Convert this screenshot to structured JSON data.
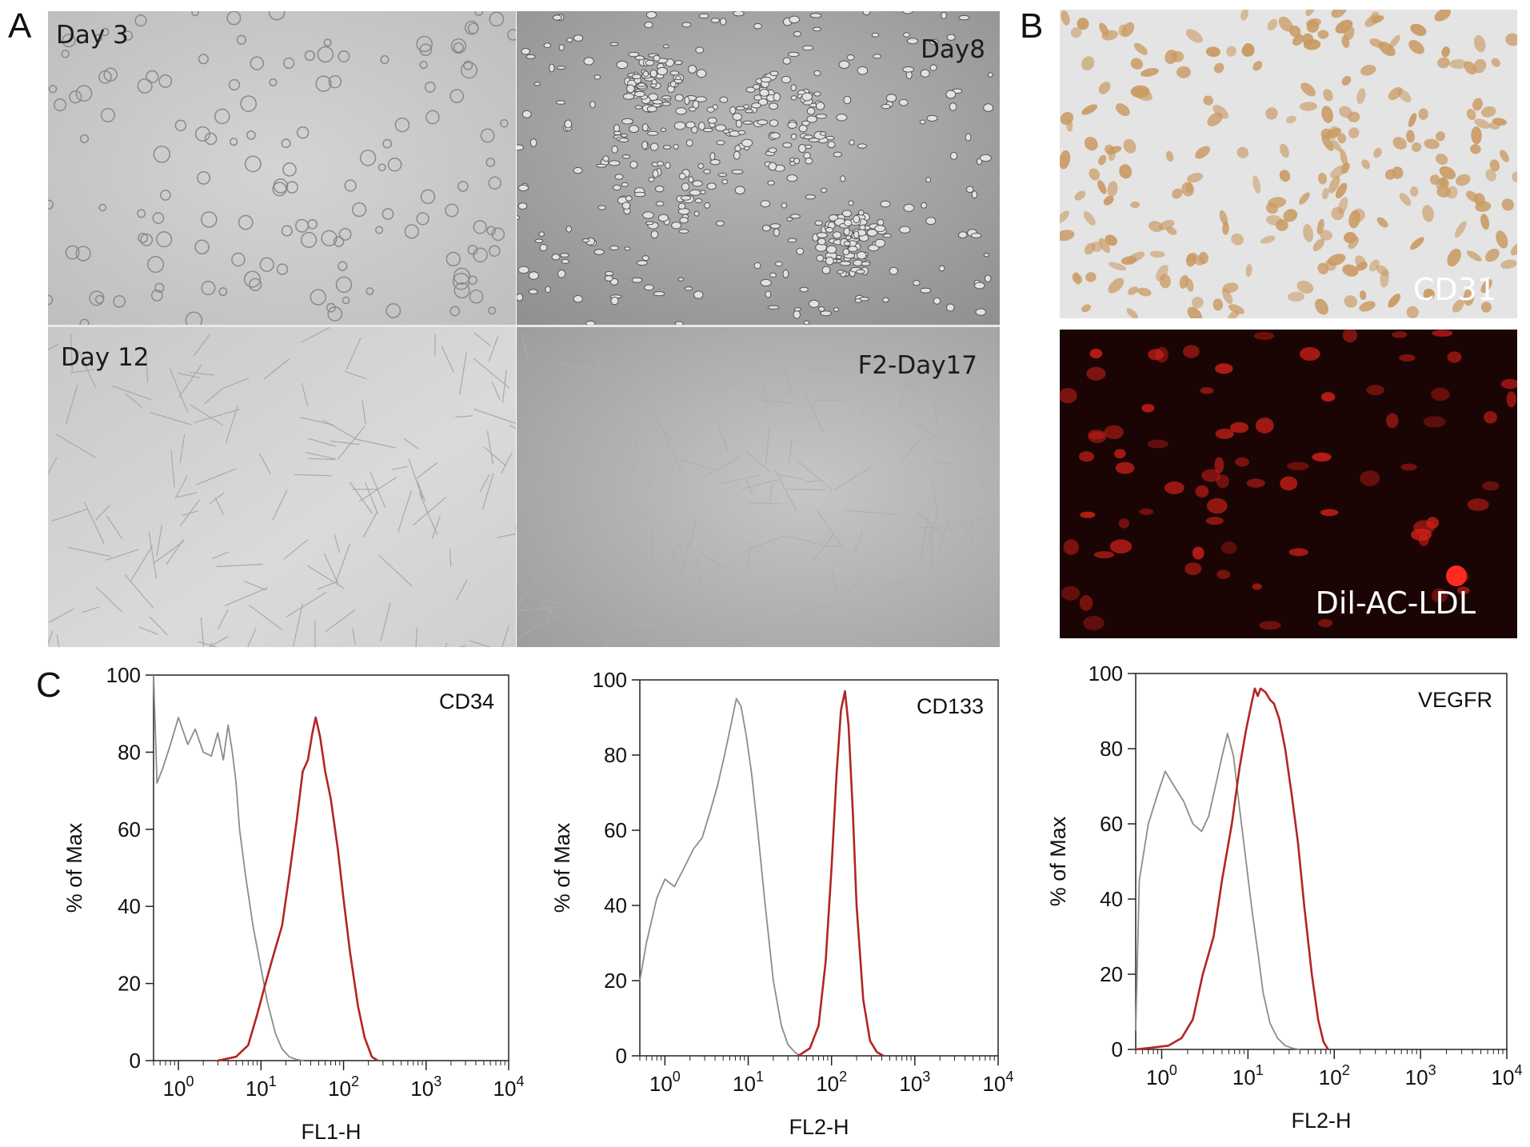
{
  "panel_letters": {
    "a": "A",
    "b": "B",
    "c": "C"
  },
  "panel_a": {
    "tiles": [
      {
        "label": "Day 3",
        "tone": "#c9c9c9"
      },
      {
        "label": "Day8",
        "tone": "#a9a9a9"
      },
      {
        "label": "Day 12",
        "tone": "#d2d2d2"
      },
      {
        "label": "F2-Day17",
        "tone": "#b0b0b0"
      }
    ]
  },
  "panel_b": {
    "top": {
      "label": "CD31",
      "background": "#e4e4e4",
      "cell_color": "#c99a63"
    },
    "bottom": {
      "label": "Dil-AC-LDL",
      "background": "#1a0504",
      "cell_color": "#d0201a"
    }
  },
  "chart_data": [
    {
      "type": "line",
      "title": "CD34",
      "xlabel": "FL1-H",
      "ylabel": "% of Max",
      "x_scale": "log",
      "xlim": [
        0.5,
        10000
      ],
      "ylim": [
        0,
        100
      ],
      "x_ticks": [
        "10^0",
        "10^1",
        "10^2",
        "10^3",
        "10^4"
      ],
      "y_ticks": [
        0,
        20,
        40,
        60,
        80,
        100
      ],
      "series": [
        {
          "color": "#8c8c8c",
          "x": [
            0.5,
            0.55,
            0.65,
            0.8,
            1.0,
            1.3,
            1.6,
            2.0,
            2.5,
            3.0,
            3.5,
            4.0,
            4.5,
            5.0,
            5.5,
            6.5,
            8,
            10,
            12,
            15,
            18,
            22,
            27,
            33
          ],
          "y": [
            100,
            72,
            76,
            82,
            89,
            82,
            86,
            80,
            79,
            85,
            78,
            87,
            80,
            72,
            60,
            48,
            35,
            24,
            15,
            7,
            3,
            1,
            0.3,
            0
          ]
        },
        {
          "color": "#b32424",
          "x": [
            3,
            5,
            7,
            9,
            11,
            14,
            18,
            22,
            27,
            32,
            37,
            42,
            46,
            52,
            60,
            70,
            85,
            100,
            120,
            150,
            180,
            220,
            260
          ],
          "y": [
            0,
            1,
            4,
            12,
            19,
            27,
            35,
            48,
            62,
            75,
            78,
            85,
            89,
            84,
            75,
            68,
            55,
            42,
            28,
            14,
            6,
            1,
            0
          ]
        }
      ]
    },
    {
      "type": "line",
      "title": "CD133",
      "xlabel": "FL2-H",
      "ylabel": "% of Max",
      "x_scale": "log",
      "xlim": [
        0.5,
        10000
      ],
      "ylim": [
        0,
        100
      ],
      "x_ticks": [
        "10^0",
        "10^1",
        "10^2",
        "10^3",
        "10^4"
      ],
      "y_ticks": [
        0,
        20,
        40,
        60,
        80,
        100
      ],
      "series": [
        {
          "color": "#8c8c8c",
          "x": [
            0.5,
            0.6,
            0.8,
            1.0,
            1.3,
            1.7,
            2.2,
            2.8,
            3.5,
            4.3,
            5.2,
            6.2,
            7.2,
            8.2,
            9.5,
            11,
            13,
            16,
            20,
            25,
            30,
            36,
            42
          ],
          "y": [
            20,
            30,
            42,
            47,
            45,
            50,
            55,
            58,
            65,
            72,
            80,
            88,
            95,
            93,
            85,
            75,
            60,
            40,
            20,
            8,
            3,
            1,
            0
          ]
        },
        {
          "color": "#b32424",
          "x": [
            40,
            55,
            70,
            85,
            100,
            115,
            130,
            145,
            160,
            180,
            200,
            240,
            290,
            350,
            420
          ],
          "y": [
            0,
            2,
            8,
            25,
            50,
            75,
            92,
            97,
            88,
            65,
            40,
            15,
            4,
            1,
            0
          ]
        }
      ]
    },
    {
      "type": "line",
      "title": "VEGFR",
      "xlabel": "FL2-H",
      "ylabel": "% of Max",
      "x_scale": "log",
      "xlim": [
        0.5,
        10000
      ],
      "ylim": [
        0,
        100
      ],
      "x_ticks": [
        "10^0",
        "10^1",
        "10^2",
        "10^3",
        "10^4"
      ],
      "y_ticks": [
        0,
        20,
        40,
        60,
        80,
        100
      ],
      "series": [
        {
          "color": "#8c8c8c",
          "x": [
            0.5,
            0.55,
            0.7,
            0.9,
            1.1,
            1.4,
            1.8,
            2.3,
            2.9,
            3.5,
            4.2,
            5.0,
            5.8,
            6.8,
            8,
            9.5,
            11,
            13,
            15,
            18,
            22,
            27,
            33,
            40
          ],
          "y": [
            5,
            45,
            60,
            68,
            74,
            70,
            66,
            60,
            58,
            62,
            70,
            78,
            84,
            78,
            64,
            50,
            38,
            26,
            15,
            7,
            3,
            1,
            0.3,
            0
          ]
        },
        {
          "color": "#b32424",
          "x": [
            0.5,
            0.8,
            1.2,
            1.7,
            2.3,
            3,
            4,
            5,
            6.5,
            8,
            9.5,
            11,
            12,
            13,
            14,
            16,
            18,
            20,
            23,
            27,
            32,
            38,
            45,
            55,
            65,
            75,
            85
          ],
          "y": [
            0,
            0.5,
            1,
            3,
            8,
            20,
            30,
            45,
            60,
            75,
            85,
            92,
            96,
            94,
            96,
            95,
            93,
            92,
            88,
            80,
            68,
            55,
            38,
            20,
            8,
            2,
            0
          ]
        }
      ]
    }
  ]
}
